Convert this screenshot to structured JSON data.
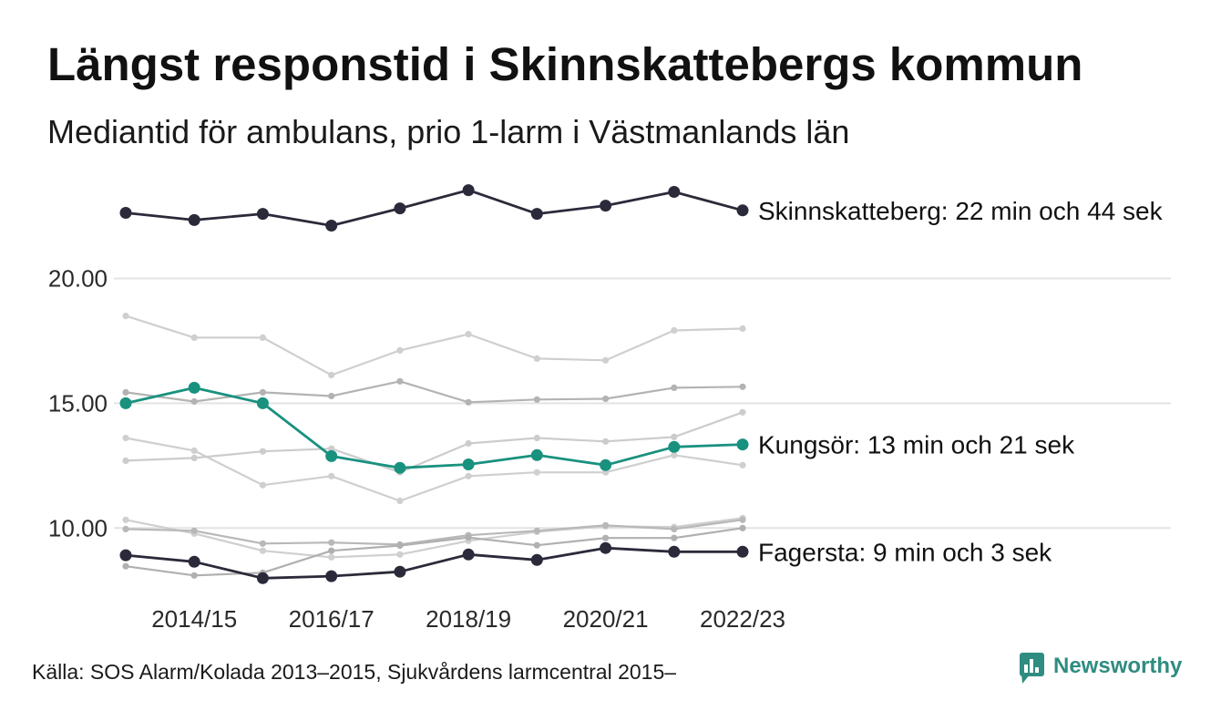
{
  "chart_data": {
    "type": "line",
    "title": "Längst responstid i Skinnskattebergs kommun",
    "subtitle": "Mediantid för ambulans, prio 1-larm i Västmanlands län",
    "x": [
      2013,
      2014,
      2015,
      2016,
      2017,
      2018,
      2019,
      2020,
      2021,
      2022
    ],
    "xlim": [
      2013,
      2022
    ],
    "xticks": [
      2014,
      2016,
      2018,
      2020,
      2022
    ],
    "xtick_labels": [
      "2014/15",
      "2016/17",
      "2018/19",
      "2020/21",
      "2022/23"
    ],
    "ylim": [
      7.6,
      24
    ],
    "yticks": [
      10,
      15,
      20
    ],
    "ytick_labels": [
      "10.00",
      "15.00",
      "20.00"
    ],
    "grid": true,
    "series": [
      {
        "color": "#cfcfcf",
        "values": [
          18.5,
          17.63,
          17.63,
          16.13,
          17.12,
          17.77,
          16.79,
          16.72,
          17.92,
          17.99
        ]
      },
      {
        "color": "#b3b3b3",
        "values": [
          15.44,
          15.07,
          15.44,
          15.29,
          15.88,
          15.04,
          15.15,
          15.18,
          15.62,
          15.66
        ]
      },
      {
        "color": "#cfcfcf",
        "values": [
          13.61,
          13.1,
          11.72,
          12.08,
          11.09,
          12.08,
          12.23,
          12.23,
          12.92,
          12.52
        ]
      },
      {
        "color": "#cccccc",
        "values": [
          12.7,
          12.81,
          13.07,
          13.18,
          12.23,
          13.39,
          13.61,
          13.47,
          13.65,
          14.64
        ]
      },
      {
        "color": "#cfcfcf",
        "values": [
          10.33,
          9.78,
          9.09,
          8.83,
          8.94,
          9.49,
          9.85,
          10.07,
          10.04,
          10.4
        ]
      },
      {
        "color": "#b8b8b8",
        "values": [
          9.96,
          9.89,
          9.38,
          9.42,
          9.34,
          9.71,
          9.89,
          10.11,
          9.96,
          10.33
        ]
      },
      {
        "color": "#b0b0b0",
        "values": [
          8.47,
          8.1,
          8.21,
          9.09,
          9.3,
          9.62,
          9.31,
          9.6,
          9.6,
          10.0
        ]
      },
      {
        "label": "Skinnskatteberg: 22 min och 44 sek",
        "color": "#2b2a3a",
        "values": [
          22.63,
          22.34,
          22.59,
          22.12,
          22.81,
          23.54,
          22.59,
          22.92,
          23.47,
          22.73
        ]
      },
      {
        "label": "Kungsör: 13 min och 21 sek",
        "color": "#19917f",
        "values": [
          15.0,
          15.62,
          15.0,
          12.88,
          12.41,
          12.55,
          12.92,
          12.52,
          13.25,
          13.35
        ]
      },
      {
        "label": "Fagersta: 9 min och 3 sek",
        "color": "#2b2a3a",
        "values": [
          8.91,
          8.65,
          7.99,
          8.07,
          8.25,
          8.94,
          8.72,
          9.2,
          9.05,
          9.05
        ]
      }
    ]
  },
  "footer": {
    "source": "Källa: SOS Alarm/Kolada 2013–2015, Sjukvårdens larmcentral 2015–"
  },
  "logo": {
    "wordmark": "Newsworthy",
    "icon": "newsworthy-logo-icon",
    "color": "#2f8c80"
  }
}
